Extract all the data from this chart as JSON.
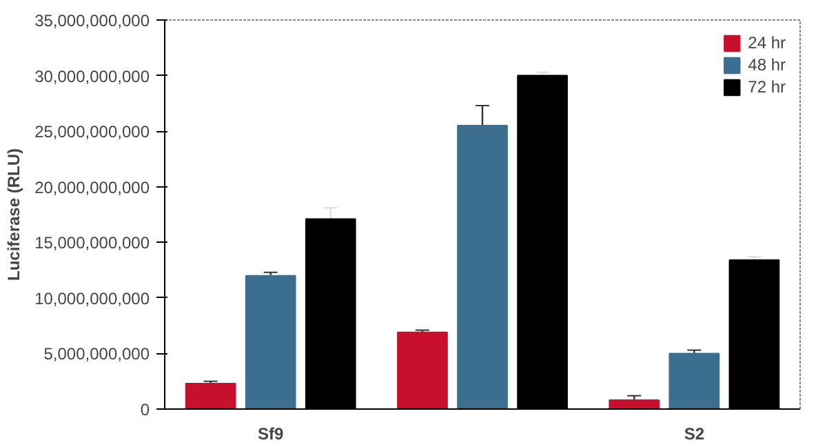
{
  "chart_data": {
    "type": "bar",
    "ylabel": "Luciferase (RLU)",
    "categories": [
      "Sf9",
      null,
      "S2"
    ],
    "series": [
      {
        "name": "24 hr",
        "color": "#c8102e",
        "values": [
          2300000000,
          6900000000,
          800000000
        ],
        "errors": [
          200000000,
          200000000,
          400000000
        ]
      },
      {
        "name": "48 hr",
        "color": "#3b6e8f",
        "values": [
          12000000000,
          25500000000,
          5000000000
        ],
        "errors": [
          300000000,
          1800000000,
          300000000
        ]
      },
      {
        "name": "72 hr",
        "color": "#000000",
        "values": [
          17100000000,
          30000000000,
          13400000000
        ],
        "errors": [
          1000000000,
          300000000,
          300000000
        ]
      }
    ],
    "ylim": [
      0,
      35000000000
    ],
    "yticks": [
      0,
      {
        "value": 5000000000,
        "label": "5,000,000,000"
      },
      {
        "value": 10000000000,
        "label": "10,000,000,000"
      },
      {
        "value": 15000000000,
        "label": "15,000,000,000"
      },
      {
        "value": 20000000000,
        "label": "20,000,000,000"
      },
      {
        "value": 25000000000,
        "label": "25,000,000,000"
      },
      {
        "value": 30000000000,
        "label": "30,000,000,000"
      },
      {
        "value": 35000000000,
        "label": "35,000,000,000"
      }
    ],
    "grid": false,
    "legend": "top right"
  }
}
